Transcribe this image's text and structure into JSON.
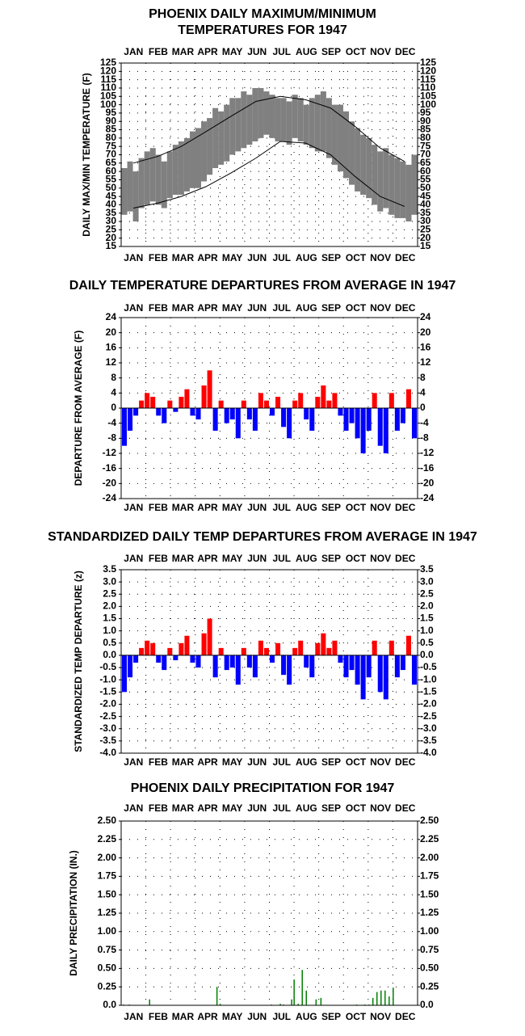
{
  "chart_data": [
    {
      "type": "range",
      "title": [
        "PHOENIX DAILY MAXIMUM/MINIMUM",
        "TEMPERATURES FOR 1947"
      ],
      "y_label": "DAILY MAX/MIN TEMPERATURE (F)",
      "categories": [
        "JAN",
        "FEB",
        "MAR",
        "APR",
        "MAY",
        "JUN",
        "JUL",
        "AUG",
        "SEP",
        "OCT",
        "NOV",
        "DEC"
      ],
      "xlim": [
        0,
        365
      ],
      "ylim": [
        15,
        125
      ],
      "yticks": [
        15,
        20,
        25,
        30,
        35,
        40,
        45,
        50,
        55,
        60,
        65,
        70,
        75,
        80,
        85,
        90,
        95,
        100,
        105,
        110,
        115,
        120,
        125
      ],
      "grid": true,
      "range": {
        "color": "#808080",
        "x": [
          4,
          11,
          18,
          25,
          32,
          39,
          46,
          53,
          60,
          67,
          74,
          81,
          88,
          95,
          102,
          109,
          116,
          123,
          130,
          137,
          144,
          151,
          158,
          165,
          172,
          179,
          186,
          193,
          200,
          207,
          214,
          221,
          228,
          235,
          242,
          249,
          256,
          263,
          270,
          277,
          284,
          291,
          298,
          305,
          312,
          319,
          326,
          333,
          340,
          347,
          354,
          361
        ],
        "high": [
          62,
          66,
          60,
          68,
          72,
          74,
          70,
          66,
          72,
          76,
          78,
          80,
          84,
          86,
          90,
          92,
          98,
          96,
          100,
          104,
          104,
          108,
          106,
          110,
          110,
          108,
          106,
          104,
          104,
          102,
          106,
          104,
          100,
          104,
          106,
          108,
          104,
          100,
          100,
          96,
          90,
          86,
          82,
          80,
          76,
          72,
          74,
          70,
          68,
          66,
          64,
          70
        ],
        "low": [
          34,
          36,
          30,
          38,
          40,
          42,
          40,
          38,
          44,
          46,
          46,
          48,
          50,
          50,
          54,
          58,
          62,
          64,
          66,
          70,
          72,
          74,
          76,
          78,
          80,
          82,
          80,
          78,
          78,
          76,
          80,
          78,
          76,
          74,
          72,
          72,
          68,
          64,
          60,
          56,
          52,
          48,
          46,
          44,
          40,
          36,
          38,
          34,
          32,
          32,
          30,
          34
        ]
      },
      "lines": [
        {
          "color": "#000000",
          "x": [
            15,
            45,
            74,
            105,
            135,
            166,
            196,
            227,
            258,
            288,
            319,
            349
          ],
          "values": [
            65,
            69,
            75,
            84,
            93,
            102,
            105,
            103,
            98,
            87,
            74,
            66
          ]
        },
        {
          "color": "#000000",
          "x": [
            15,
            45,
            74,
            105,
            135,
            166,
            196,
            227,
            258,
            288,
            319,
            349
          ],
          "values": [
            38,
            41,
            45,
            51,
            59,
            68,
            78,
            77,
            70,
            57,
            45,
            39
          ]
        }
      ]
    },
    {
      "type": "bar",
      "title": "DAILY TEMPERATURE DEPARTURES FROM AVERAGE IN 1947",
      "y_label": "DEPARTURE FROM AVERAGE (F)",
      "categories": [
        "JAN",
        "FEB",
        "MAR",
        "APR",
        "MAY",
        "JUN",
        "JUL",
        "AUG",
        "SEP",
        "OCT",
        "NOV",
        "DEC"
      ],
      "xlim": [
        0,
        365
      ],
      "ylim": [
        -24,
        24
      ],
      "yticks": [
        24,
        20,
        16,
        12,
        8,
        4,
        0,
        -4,
        -8,
        -12,
        -16,
        -20,
        -24
      ],
      "grid": true,
      "colors": {
        "positive": "#ff0000",
        "negative": "#0000ff"
      },
      "x": [
        4,
        11,
        18,
        25,
        32,
        39,
        46,
        53,
        60,
        67,
        74,
        81,
        88,
        95,
        102,
        109,
        116,
        123,
        130,
        137,
        144,
        151,
        158,
        165,
        172,
        179,
        186,
        193,
        200,
        207,
        214,
        221,
        228,
        235,
        242,
        249,
        256,
        263,
        270,
        277,
        284,
        291,
        298,
        305,
        312,
        319,
        326,
        333,
        340,
        347,
        354,
        361
      ],
      "values": [
        -10,
        -6,
        -2,
        2,
        4,
        3,
        -2,
        -4,
        2,
        -1,
        3,
        5,
        -2,
        -3,
        6,
        10,
        -6,
        2,
        -4,
        -3,
        -8,
        2,
        -3,
        -6,
        4,
        2,
        -2,
        3,
        -5,
        -8,
        2,
        4,
        -3,
        -6,
        3,
        6,
        2,
        4,
        -2,
        -6,
        -4,
        -8,
        -12,
        -6,
        4,
        -10,
        -12,
        4,
        -6,
        -4,
        5,
        -8
      ]
    },
    {
      "type": "bar",
      "title": "STANDARDIZED DAILY TEMP DEPARTURES FROM AVERAGE IN 1947",
      "y_label": "STANDARDIZED TEMP DEPARTURE (z)",
      "categories": [
        "JAN",
        "FEB",
        "MAR",
        "APR",
        "MAY",
        "JUN",
        "JUL",
        "AUG",
        "SEP",
        "OCT",
        "NOV",
        "DEC"
      ],
      "xlim": [
        0,
        365
      ],
      "ylim": [
        -4,
        3.5
      ],
      "yticks": [
        3.5,
        {
          "value": 3,
          "label": "3.0"
        },
        2.5,
        {
          "value": 2,
          "label": "2.0"
        },
        1.5,
        {
          "value": 1,
          "label": "1.0"
        },
        0.5,
        {
          "value": 0,
          "label": "0.0"
        },
        -0.5,
        {
          "value": -1,
          "label": "-1.0"
        },
        -1.5,
        {
          "value": -2,
          "label": "-2.0"
        },
        -2.5,
        {
          "value": -3,
          "label": "-3.0"
        },
        -3.5,
        {
          "value": -4,
          "label": "-4.0"
        }
      ],
      "grid": true,
      "colors": {
        "positive": "#ff0000",
        "negative": "#0000ff"
      },
      "x": [
        4,
        11,
        18,
        25,
        32,
        39,
        46,
        53,
        60,
        67,
        74,
        81,
        88,
        95,
        102,
        109,
        116,
        123,
        130,
        137,
        144,
        151,
        158,
        165,
        172,
        179,
        186,
        193,
        200,
        207,
        214,
        221,
        228,
        235,
        242,
        249,
        256,
        263,
        270,
        277,
        284,
        291,
        298,
        305,
        312,
        319,
        326,
        333,
        340,
        347,
        354,
        361
      ],
      "values": [
        -1.5,
        -0.9,
        -0.3,
        0.3,
        0.6,
        0.5,
        -0.3,
        -0.6,
        0.3,
        -0.2,
        0.5,
        0.8,
        -0.3,
        -0.5,
        0.9,
        1.5,
        -0.9,
        0.3,
        -0.6,
        -0.5,
        -1.2,
        0.3,
        -0.5,
        -0.9,
        0.6,
        0.3,
        -0.3,
        0.5,
        -0.8,
        -1.2,
        0.3,
        0.6,
        -0.5,
        -0.9,
        0.5,
        0.9,
        0.3,
        0.6,
        -0.3,
        -0.9,
        -0.6,
        -1.2,
        -1.8,
        -0.9,
        0.6,
        -1.5,
        -1.8,
        0.6,
        -0.9,
        -0.6,
        0.8,
        -1.2
      ]
    },
    {
      "type": "bar",
      "title": "PHOENIX DAILY PRECIPITATION FOR 1947",
      "y_label": "DAILY PRECIPITATION (IN.)",
      "categories": [
        "JAN",
        "FEB",
        "MAR",
        "APR",
        "MAY",
        "JUN",
        "JUL",
        "AUG",
        "SEP",
        "OCT",
        "NOV",
        "DEC"
      ],
      "xlim": [
        0,
        365
      ],
      "ylim": [
        0,
        2.5
      ],
      "yticks": [
        {
          "value": 0,
          "label": "0.0"
        },
        0.25,
        {
          "value": 0.5,
          "label": "0.50"
        },
        0.75,
        {
          "value": 1,
          "label": "1.00"
        },
        1.25,
        {
          "value": 1.5,
          "label": "1.50"
        },
        1.75,
        {
          "value": 2,
          "label": "2.00"
        },
        2.25,
        {
          "value": 2.5,
          "label": "2.50"
        }
      ],
      "grid": true,
      "color": "#008000",
      "x": [
        3,
        10,
        35,
        118,
        122,
        185,
        196,
        200,
        210,
        213,
        218,
        223,
        228,
        240,
        246,
        290,
        300,
        305,
        310,
        315,
        320,
        325,
        330,
        335
      ],
      "values": [
        0.01,
        0.01,
        0.08,
        0.25,
        0.02,
        0.01,
        0.02,
        0.01,
        0.08,
        0.35,
        0.02,
        0.48,
        0.2,
        0.08,
        0.1,
        0.01,
        0.01,
        0.01,
        0.1,
        0.18,
        0.2,
        0.2,
        0.12,
        0.24
      ]
    }
  ]
}
